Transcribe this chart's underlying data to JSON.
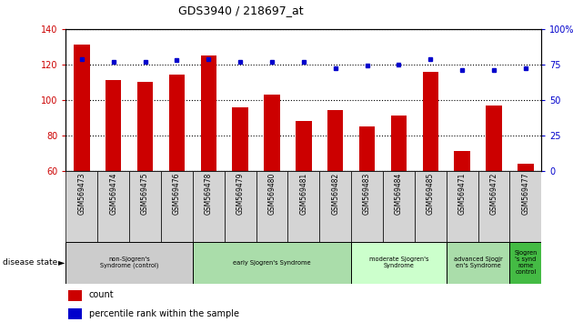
{
  "title": "GDS3940 / 218697_at",
  "samples": [
    "GSM569473",
    "GSM569474",
    "GSM569475",
    "GSM569476",
    "GSM569478",
    "GSM569479",
    "GSM569480",
    "GSM569481",
    "GSM569482",
    "GSM569483",
    "GSM569484",
    "GSM569485",
    "GSM569471",
    "GSM569472",
    "GSM569477"
  ],
  "counts": [
    131,
    111,
    110,
    114,
    125,
    96,
    103,
    88,
    94,
    85,
    91,
    116,
    71,
    97,
    64
  ],
  "percentile": [
    79,
    77,
    77,
    78,
    79,
    77,
    77,
    77,
    72,
    74,
    75,
    79,
    71,
    71,
    72
  ],
  "ylim_left": [
    60,
    140
  ],
  "ylim_right": [
    0,
    100
  ],
  "yticks_left": [
    60,
    80,
    100,
    120,
    140
  ],
  "yticks_right": [
    0,
    25,
    50,
    75,
    100
  ],
  "ytick_labels_right": [
    "0",
    "25",
    "50",
    "75",
    "100%"
  ],
  "groups": [
    {
      "label": "non-Sjogren's\nSyndrome (control)",
      "start": 0,
      "end": 3,
      "color": "#cccccc"
    },
    {
      "label": "early Sjogren's Syndrome",
      "start": 4,
      "end": 8,
      "color": "#aaddaa"
    },
    {
      "label": "moderate Sjogren's\nSyndrome",
      "start": 9,
      "end": 11,
      "color": "#ccffcc"
    },
    {
      "label": "advanced Sjogjr\nen's Syndrome",
      "start": 12,
      "end": 13,
      "color": "#aaddaa"
    },
    {
      "label": "Sjogren\n's synd\nrome\ncontrol",
      "start": 14,
      "end": 14,
      "color": "#44bb44"
    }
  ],
  "bar_color": "#cc0000",
  "dot_color": "#0000cc",
  "left_axis_color": "#cc0000",
  "right_axis_color": "#0000cc"
}
